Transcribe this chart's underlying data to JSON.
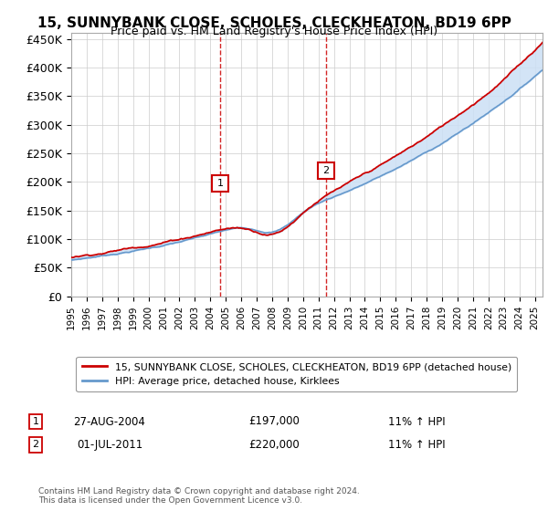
{
  "title": "15, SUNNYBANK CLOSE, SCHOLES, CLECKHEATON, BD19 6PP",
  "subtitle": "Price paid vs. HM Land Registry's House Price Index (HPI)",
  "ylabel_ticks": [
    "£0",
    "£50K",
    "£100K",
    "£150K",
    "£200K",
    "£250K",
    "£300K",
    "£350K",
    "£400K",
    "£450K"
  ],
  "ytick_values": [
    0,
    50000,
    100000,
    150000,
    200000,
    250000,
    300000,
    350000,
    400000,
    450000
  ],
  "ylim": [
    0,
    460000
  ],
  "xlim_start": 1995.0,
  "xlim_end": 2025.5,
  "marker1_x": 2004.65,
  "marker1_y": 197000,
  "marker2_x": 2011.5,
  "marker2_y": 220000,
  "sale1_date": "27-AUG-2004",
  "sale1_price": "£197,000",
  "sale1_hpi": "11% ↑ HPI",
  "sale2_date": "01-JUL-2011",
  "sale2_price": "£220,000",
  "sale2_hpi": "11% ↑ HPI",
  "legend_line1": "15, SUNNYBANK CLOSE, SCHOLES, CLECKHEATON, BD19 6PP (detached house)",
  "legend_line2": "HPI: Average price, detached house, Kirklees",
  "footer": "Contains HM Land Registry data © Crown copyright and database right 2024.\nThis data is licensed under the Open Government Licence v3.0.",
  "line_color_red": "#cc0000",
  "line_color_blue": "#6699cc",
  "shade_color": "#cce0f5",
  "vline_color": "#cc0000",
  "background_color": "#ffffff",
  "grid_color": "#cccccc"
}
